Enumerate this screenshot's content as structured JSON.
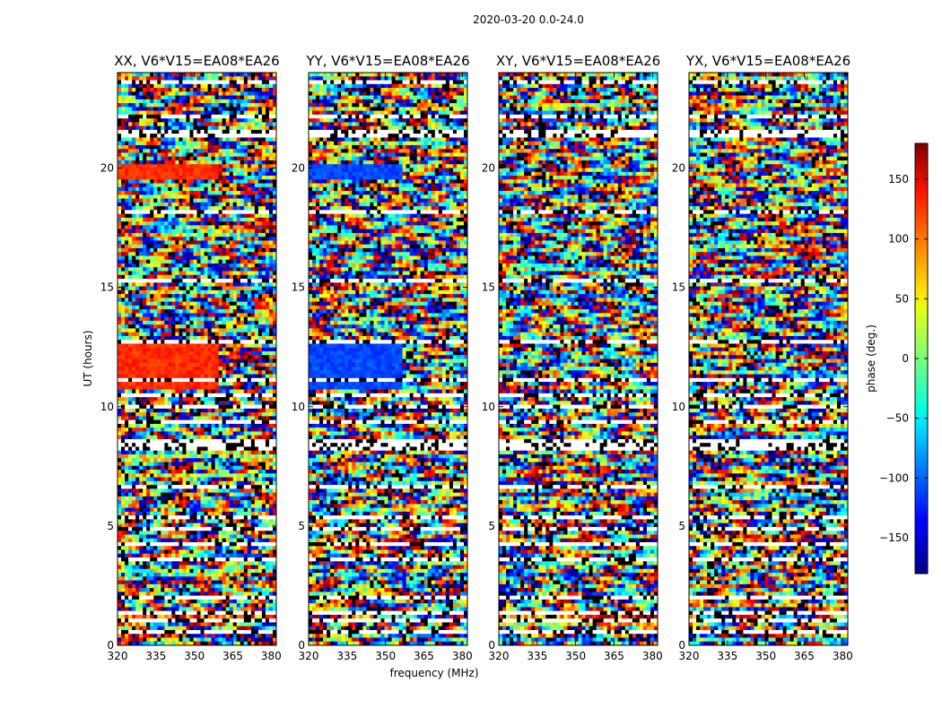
{
  "chart_data": {
    "type": "heatmap",
    "suptitle": "2020-03-20 0.0-24.0",
    "xlabel": "frequency (MHz)",
    "ylabel": "UT (hours)",
    "xlim": [
      320,
      382
    ],
    "ylim": [
      0,
      24
    ],
    "xticks": [
      320,
      335,
      350,
      365,
      380
    ],
    "yticks": [
      0,
      5,
      10,
      15,
      20
    ],
    "panels": [
      {
        "title": "XX, V6*V15=EA08*EA26",
        "strong_phase": 120,
        "strong_until_mhz": 360
      },
      {
        "title": "YY, V6*V15=EA08*EA26",
        "strong_phase": -110,
        "strong_until_mhz": 356
      },
      {
        "title": "XY, V6*V15=EA08*EA26",
        "strong_phase": null,
        "strong_until_mhz": null
      },
      {
        "title": "YX, V6*V15=EA08*EA26",
        "strong_phase": null,
        "strong_until_mhz": null
      }
    ],
    "colorbar": {
      "label": "phase (deg.)",
      "range": [
        -180,
        180
      ],
      "ticks": [
        150,
        100,
        50,
        0,
        -50,
        -100,
        -150
      ],
      "tick_labels": [
        "150",
        "100",
        "50",
        "0",
        "−50",
        "−100",
        "−150"
      ],
      "colormap": "jet"
    },
    "flagged_ut_ranges": [
      [
        0.55,
        0.65
      ],
      [
        0.95,
        1.05
      ],
      [
        1.35,
        1.42
      ],
      [
        1.95,
        2.02
      ],
      [
        2.35,
        2.45
      ],
      [
        3.05,
        3.12
      ],
      [
        3.55,
        3.62
      ],
      [
        3.85,
        3.92
      ],
      [
        4.15,
        4.3
      ],
      [
        4.85,
        4.92
      ],
      [
        5.35,
        5.45
      ],
      [
        6.05,
        6.12
      ],
      [
        6.55,
        6.65
      ],
      [
        7.15,
        7.22
      ],
      [
        8.2,
        8.4
      ],
      [
        8.55,
        8.65
      ],
      [
        9.35,
        9.42
      ],
      [
        9.95,
        10.05
      ],
      [
        10.45,
        10.55
      ],
      [
        11.1,
        11.2
      ],
      [
        12.65,
        12.75
      ],
      [
        13.25,
        13.35
      ],
      [
        13.85,
        13.95
      ],
      [
        14.5,
        14.58
      ],
      [
        15.25,
        15.33
      ],
      [
        16.1,
        16.18
      ],
      [
        16.6,
        16.7
      ],
      [
        17.4,
        17.48
      ],
      [
        18.15,
        18.22
      ],
      [
        18.85,
        18.95
      ],
      [
        19.45,
        19.52
      ],
      [
        21.35,
        21.55
      ],
      [
        22.15,
        22.22
      ],
      [
        23.15,
        23.22
      ],
      [
        23.6,
        23.68
      ]
    ],
    "strong_ut_ranges": [
      [
        10.7,
        11.1
      ],
      [
        11.2,
        12.65
      ],
      [
        19.5,
        20.1
      ]
    ]
  }
}
